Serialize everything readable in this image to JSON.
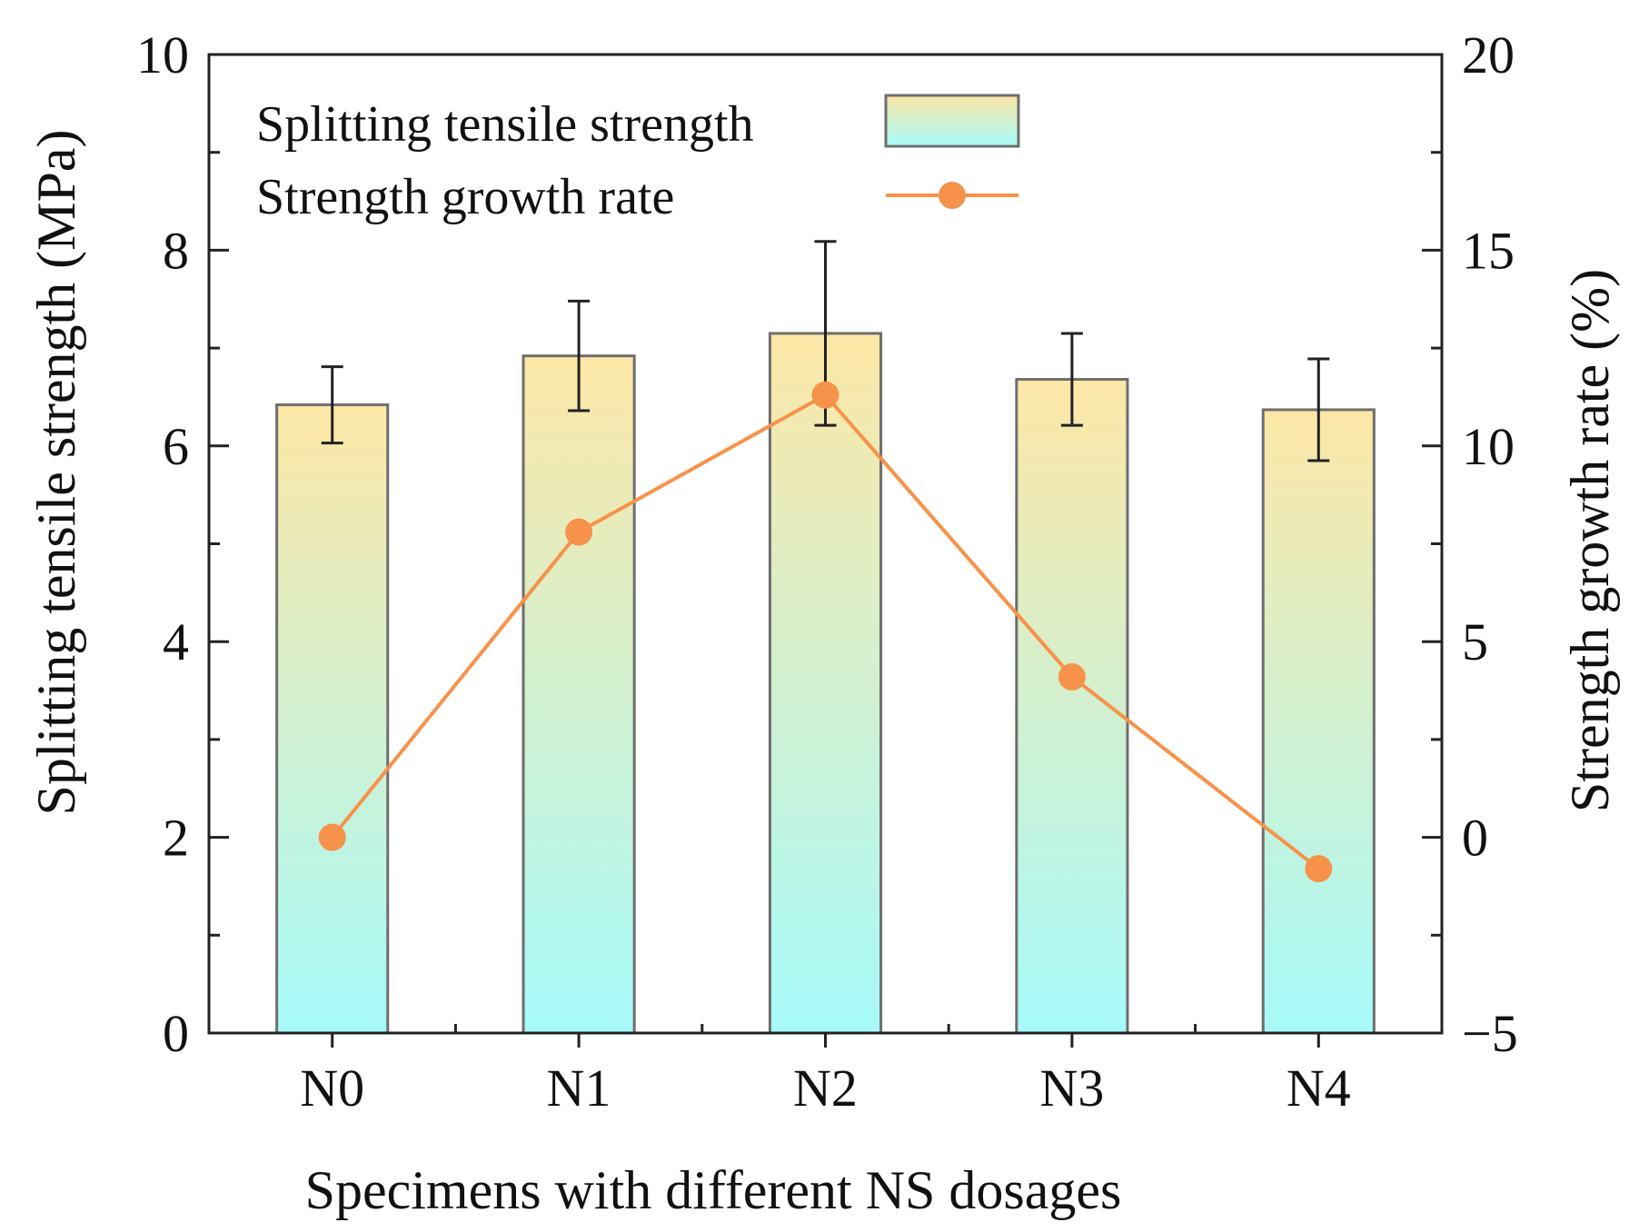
{
  "chart_data": {
    "type": "bar+line",
    "xlabel": "Specimens with different NS dosages",
    "ylabel_left": "Splitting tensile strength (MPa)",
    "ylabel_right": "Strength growth rate (%)",
    "categories": [
      "N0",
      "N1",
      "N2",
      "N3",
      "N4"
    ],
    "ylim_left": [
      0,
      10
    ],
    "yticks_left": [
      0,
      2,
      4,
      6,
      8,
      10
    ],
    "ylim_right": [
      -5,
      20
    ],
    "yticks_right": [
      -5,
      0,
      5,
      10,
      15,
      20
    ],
    "yticks_right_labels": [
      "−5",
      "0",
      "5",
      "10",
      "15",
      "20"
    ],
    "series": [
      {
        "name": "Splitting tensile strength",
        "kind": "bar",
        "axis": "left",
        "values": [
          6.42,
          6.92,
          7.15,
          6.68,
          6.37
        ],
        "error": [
          0.39,
          0.56,
          0.94,
          0.47,
          0.52
        ]
      },
      {
        "name": "Strength growth rate",
        "kind": "line",
        "axis": "right",
        "values": [
          0.0,
          7.8,
          11.3,
          4.1,
          -0.8
        ]
      }
    ],
    "legend_position": "top-left",
    "colors": {
      "bar_top": "#fde7a6",
      "bar_bottom": "#a6fafa",
      "bar_stroke": "#6e6e6e",
      "line": "#f7924a",
      "axis": "#222222"
    }
  }
}
